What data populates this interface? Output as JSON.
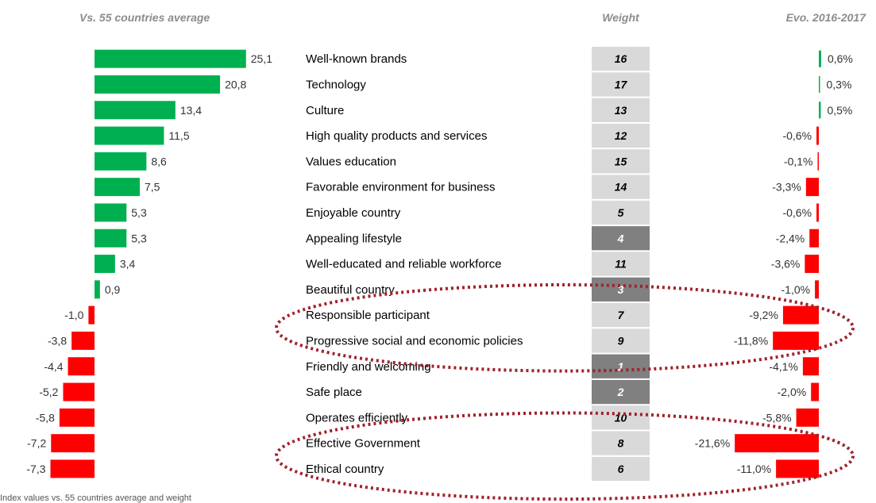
{
  "headers": {
    "left": "Vs. 55 countries average",
    "weight": "Weight",
    "evo": "Evo. 2016-2017"
  },
  "colors": {
    "positive": "#00b050",
    "negative": "#ff0000",
    "weight_light": "#d9d9d9",
    "weight_dark": "#808080",
    "highlight_ellipse": "#a0222a"
  },
  "chart_data": {
    "type": "bar",
    "categories": [
      "Well-known brands",
      "Technology",
      "Culture",
      "High quality products and services",
      "Values education",
      "Favorable environment for business",
      "Enjoyable country",
      "Appealing lifestyle",
      "Well-educated and reliable workforce",
      "Beautiful country",
      "Responsible participant",
      "Progressive social and economic policies",
      "Friendly and welcoming",
      "Safe place",
      "Operates efficiently",
      "Effective Government",
      "Ethical country"
    ],
    "series": [
      {
        "name": "Vs. 55 countries average",
        "values": [
          25.1,
          20.8,
          13.4,
          11.5,
          8.6,
          7.5,
          5.3,
          5.3,
          3.4,
          0.9,
          -1.0,
          -3.8,
          -4.4,
          -5.2,
          -5.8,
          -7.2,
          -7.3
        ],
        "labels": [
          "25,1",
          "20,8",
          "13,4",
          "11,5",
          "8,6",
          "7,5",
          "5,3",
          "5,3",
          "3,4",
          "0,9",
          "-1,0",
          "-3,8",
          "-4,4",
          "-5,2",
          "-5,8",
          "-7,2",
          "-7,3"
        ]
      },
      {
        "name": "Weight",
        "values": [
          16,
          17,
          13,
          12,
          15,
          14,
          5,
          4,
          11,
          3,
          7,
          9,
          1,
          2,
          10,
          8,
          6
        ],
        "labels": [
          "16",
          "17",
          "13",
          "12",
          "15",
          "14",
          "5",
          "4",
          "11",
          "3",
          "7",
          "9",
          "1",
          "2",
          "10",
          "8",
          "6"
        ],
        "dark": [
          false,
          false,
          false,
          false,
          false,
          false,
          false,
          true,
          false,
          true,
          false,
          false,
          true,
          true,
          false,
          false,
          false
        ]
      },
      {
        "name": "Evo. 2016-2017",
        "values": [
          0.6,
          0.3,
          0.5,
          -0.6,
          -0.1,
          -3.3,
          -0.6,
          -2.4,
          -3.6,
          -1.0,
          -9.2,
          -11.8,
          -4.1,
          -2.0,
          -5.8,
          -21.6,
          -11.0
        ],
        "labels": [
          "0,6%",
          "0,3%",
          "0,5%",
          "-0,6%",
          "-0,1%",
          "-3,3%",
          "-0,6%",
          "-2,4%",
          "-3,6%",
          "-1,0%",
          "-9,2%",
          "-11,8%",
          "-4,1%",
          "-2,0%",
          "-5,8%",
          "-21,6%",
          "-11,0%"
        ]
      }
    ],
    "highlighted": [
      "Responsible participant",
      "Progressive social and economic policies",
      "Effective Government",
      "Ethical country"
    ]
  }
}
